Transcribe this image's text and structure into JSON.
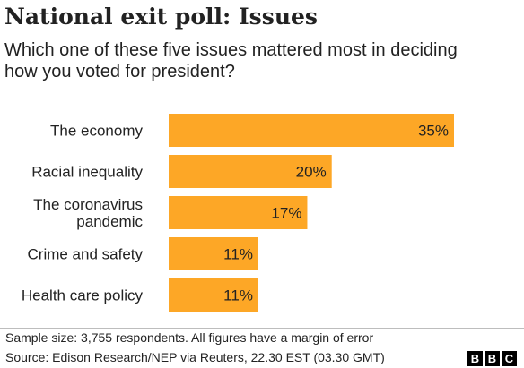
{
  "header": {
    "title": "National exit poll: Issues",
    "subtitle": "Which one of these five issues mattered most in deciding how you voted for president?"
  },
  "footer": {
    "note": "Sample size: 3,755 respondents. All figures have a margin of error",
    "source": "Source: Edison Research/NEP via Reuters, 22.30 EST (03.30 GMT)",
    "logo_letters": [
      "B",
      "B",
      "C"
    ]
  },
  "colors": {
    "bar": "#FDA726",
    "text": "#222222"
  },
  "chart_data": {
    "type": "bar",
    "orientation": "horizontal",
    "title": "National exit poll: Issues",
    "subtitle": "Which one of these five issues mattered most in deciding how you voted for president?",
    "categories": [
      [
        "The economy"
      ],
      [
        "Racial inequality"
      ],
      [
        "The coronavirus",
        "pandemic"
      ],
      [
        "Crime and safety"
      ],
      [
        "Health care policy"
      ]
    ],
    "values": [
      35,
      20,
      17,
      11,
      11
    ],
    "value_labels": [
      "35%",
      "20%",
      "17%",
      "11%",
      "11%"
    ],
    "unit": "%",
    "xlim": [
      0,
      35
    ],
    "grid": false,
    "legend": "none"
  }
}
